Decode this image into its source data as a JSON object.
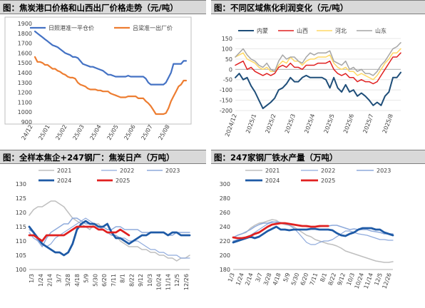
{
  "panels": {
    "p1": {
      "title": "图：焦炭港口价格和山西出厂价格走势（元/吨）"
    },
    "p2": {
      "title": "图：不同区域焦化利润变化（元/吨）"
    },
    "p3": {
      "title": "图：全样本焦企+247钢厂：焦炭日产（万吨）"
    },
    "p4": {
      "title": "图：247家钢厂铁水产量（万吨）"
    }
  },
  "colors": {
    "blue": "#4472c4",
    "orange": "#ed7d31",
    "navy": "#1f4e79",
    "red": "#e02020",
    "yellow": "#ffd966",
    "gray": "#a6a6a6",
    "lightblue": "#8faadc",
    "darkblue": "#1e5aa6",
    "grayline": "#bfbfbf"
  },
  "chart_data": [
    {
      "type": "line",
      "ylim": [
        900,
        1900
      ],
      "yticks": [
        900,
        1000,
        1100,
        1200,
        1300,
        1400,
        1500,
        1600,
        1700,
        1800,
        1900
      ],
      "xticks": [
        "24/12",
        "25/01",
        "25/02",
        "25/03",
        "25/04",
        "25/05",
        "25/06",
        "25/07",
        "25/08"
      ],
      "legend_position": "top",
      "series": [
        {
          "name": "日照港准一平仓价",
          "values": [
            1820,
            1800,
            1780,
            1760,
            1740,
            1720,
            1700,
            1680,
            1670,
            1660,
            1640,
            1620,
            1600,
            1590,
            1580,
            1560,
            1560,
            1550,
            1520,
            1490,
            1480,
            1470,
            1460,
            1460,
            1450,
            1440,
            1430,
            1420,
            1400,
            1380,
            1380,
            1370,
            1360,
            1360,
            1360,
            1360,
            1360,
            1370,
            1360,
            1360,
            1360,
            1360,
            1360,
            1360,
            1340,
            1300,
            1280,
            1280,
            1280,
            1280,
            1280,
            1280,
            1300,
            1350,
            1400,
            1490,
            1490,
            1490,
            1490,
            1520,
            1520
          ]
        },
        {
          "name": "吕梁准一出厂价",
          "values": [
            1560,
            1510,
            1510,
            1500,
            1480,
            1480,
            1460,
            1440,
            1440,
            1420,
            1410,
            1390,
            1380,
            1360,
            1350,
            1350,
            1340,
            1300,
            1280,
            1270,
            1260,
            1240,
            1230,
            1230,
            1230,
            1220,
            1220,
            1210,
            1210,
            1210,
            1190,
            1180,
            1170,
            1160,
            1150,
            1150,
            1150,
            1160,
            1160,
            1160,
            1160,
            1140,
            1140,
            1140,
            1110,
            1090,
            1060,
            1020,
            980,
            980,
            980,
            980,
            990,
            1040,
            1110,
            1160,
            1210,
            1260,
            1280,
            1320,
            1320
          ]
        }
      ]
    },
    {
      "type": "line",
      "ylim": [
        -200,
        150
      ],
      "yticks": [
        -200,
        -150,
        -100,
        -50,
        0,
        50,
        100,
        150
      ],
      "xticks": [
        "2024/12",
        "2025/1",
        "2025/2",
        "2025/3",
        "2025/4",
        "2025/5",
        "2025/6",
        "2025/7",
        "2025/8"
      ],
      "legend_position": "top",
      "series": [
        {
          "name": "内蒙",
          "values": [
            -40,
            -20,
            -50,
            -40,
            -80,
            -110,
            -150,
            -190,
            -175,
            -160,
            -140,
            -100,
            -90,
            -70,
            -40,
            -60,
            -60,
            -40,
            -30,
            -40,
            -40,
            -40,
            -40,
            -50,
            -90,
            -40,
            -90,
            -110,
            -75,
            -110,
            -100,
            -130,
            -115,
            -130,
            -150,
            -175,
            -160,
            -175,
            -130,
            -110,
            -40,
            -40,
            -15
          ]
        },
        {
          "name": "山西",
          "values": [
            20,
            30,
            40,
            0,
            10,
            -10,
            -20,
            -30,
            -20,
            -30,
            -20,
            10,
            20,
            10,
            30,
            10,
            10,
            0,
            20,
            20,
            20,
            30,
            30,
            30,
            40,
            0,
            -20,
            -30,
            -20,
            -40,
            -40,
            -60,
            -50,
            -60,
            -60,
            -70,
            -60,
            -30,
            0,
            30,
            60,
            60,
            80
          ]
        },
        {
          "name": "河北",
          "values": [
            60,
            70,
            80,
            50,
            40,
            30,
            10,
            0,
            10,
            -10,
            -10,
            20,
            40,
            30,
            60,
            40,
            40,
            20,
            40,
            50,
            50,
            60,
            60,
            60,
            70,
            30,
            10,
            0,
            10,
            -10,
            -10,
            -30,
            -20,
            -30,
            -40,
            -50,
            -30,
            0,
            30,
            50,
            80,
            80,
            100
          ]
        },
        {
          "name": "山东",
          "values": [
            60,
            80,
            100,
            70,
            50,
            40,
            20,
            10,
            30,
            0,
            -10,
            40,
            70,
            50,
            60,
            60,
            40,
            30,
            60,
            80,
            70,
            80,
            80,
            80,
            90,
            40,
            30,
            20,
            40,
            0,
            10,
            -10,
            0,
            -20,
            -20,
            -30,
            -10,
            20,
            40,
            70,
            100,
            110,
            130
          ]
        }
      ]
    },
    {
      "type": "line",
      "ylim": [
        100,
        130
      ],
      "yticks": [
        100,
        105,
        110,
        115,
        120,
        125,
        130
      ],
      "xticks": [
        "1/3",
        "1/24",
        "2/14",
        "3/7",
        "3/28",
        "4/18",
        "5/9",
        "5/30",
        "6/20",
        "7/11",
        "8/1",
        "8/22",
        "9/12",
        "10/3",
        "10/24",
        "11/14",
        "12/5",
        "12/26"
      ],
      "legend_position": "top",
      "series": [
        {
          "name": "2021",
          "values": [
            119,
            121,
            122,
            122,
            123,
            124,
            124,
            123,
            122,
            120,
            118,
            117,
            116,
            115,
            114,
            116,
            116,
            114,
            113,
            112,
            112,
            110,
            109,
            108,
            108,
            108,
            107,
            107,
            106,
            106,
            105,
            105,
            104,
            104,
            103,
            104,
            104,
            105
          ]
        },
        {
          "name": "2022",
          "values": [
            113,
            111,
            110,
            109,
            108,
            109,
            111,
            112,
            113,
            114,
            115,
            116,
            117,
            118,
            117,
            116,
            115,
            114,
            113,
            112,
            112,
            111,
            111,
            110,
            110,
            110,
            109,
            108,
            107,
            107,
            106,
            106,
            105,
            105,
            105,
            104,
            104,
            104
          ]
        },
        {
          "name": "2023",
          "values": [
            114,
            113,
            110,
            108,
            111,
            113,
            114,
            115,
            116,
            116,
            118,
            118,
            117,
            116,
            116,
            116,
            115,
            115,
            114,
            114,
            115,
            115,
            114,
            114,
            114,
            114,
            113,
            113,
            113,
            113,
            113,
            113,
            112,
            112,
            113,
            113,
            113,
            113
          ]
        },
        {
          "name": "2024",
          "values": [
            115,
            113,
            111,
            109,
            108,
            107,
            106,
            106,
            105,
            106,
            109,
            114,
            116,
            117,
            116,
            116,
            115,
            115,
            116,
            113,
            111,
            111,
            110,
            109,
            110,
            111,
            112,
            112,
            113,
            113,
            113,
            113,
            112,
            113,
            113,
            112,
            112,
            112
          ]
        },
        {
          "name": "2025",
          "values": [
            112,
            112,
            111,
            110,
            112,
            112,
            112,
            112,
            112,
            113,
            114,
            115,
            115,
            115,
            115,
            115,
            114,
            114,
            113,
            113,
            113,
            114,
            113,
            112
          ]
        }
      ]
    },
    {
      "type": "line",
      "ylim": [
        180,
        300
      ],
      "yticks": [
        180,
        200,
        220,
        240,
        260,
        280,
        300
      ],
      "xticks": [
        "1/3",
        "1/24",
        "2/14",
        "3/7",
        "3/28",
        "4/18",
        "5/9",
        "5/30",
        "6/20",
        "7/11",
        "8/1",
        "8/22",
        "9/12",
        "10/3",
        "10/24",
        "11/14",
        "12/5",
        "12/26"
      ],
      "legend_position": "top",
      "series": [
        {
          "name": "2021",
          "values": [
            225,
            228,
            230,
            232,
            238,
            242,
            245,
            246,
            248,
            250,
            249,
            245,
            243,
            242,
            240,
            236,
            232,
            228,
            226,
            222,
            220,
            218,
            216,
            215,
            213,
            210,
            206,
            204,
            202,
            200,
            198,
            196,
            194,
            192,
            191,
            190,
            190,
            191
          ]
        },
        {
          "name": "2022",
          "values": [
            220,
            222,
            224,
            226,
            228,
            232,
            236,
            240,
            244,
            246,
            247,
            246,
            244,
            242,
            238,
            232,
            225,
            218,
            215,
            215,
            218,
            220,
            220,
            222,
            226,
            230,
            234,
            234,
            232,
            230,
            229,
            228,
            226,
            224,
            222,
            222,
            221,
            221
          ]
        },
        {
          "name": "2023",
          "values": [
            225,
            228,
            230,
            233,
            236,
            240,
            243,
            245,
            245,
            247,
            246,
            245,
            244,
            243,
            243,
            242,
            241,
            240,
            240,
            240,
            240,
            241,
            241,
            242,
            242,
            240,
            238,
            236,
            237,
            236,
            236,
            236,
            234,
            233,
            232,
            230,
            230,
            230
          ]
        },
        {
          "name": "2024",
          "values": [
            218,
            220,
            222,
            224,
            226,
            224,
            226,
            230,
            234,
            237,
            240,
            236,
            236,
            235,
            236,
            236,
            236,
            236,
            237,
            237,
            236,
            236,
            236,
            235,
            231,
            228,
            227,
            230,
            232,
            236,
            238,
            238,
            238,
            236,
            236,
            232,
            230,
            228
          ]
        },
        {
          "name": "2025",
          "values": [
            225,
            224,
            224,
            225,
            227,
            230,
            232,
            236,
            240,
            243,
            244,
            245,
            245,
            244,
            243,
            242,
            241,
            241,
            240,
            240,
            241,
            241,
            241
          ]
        }
      ]
    }
  ]
}
